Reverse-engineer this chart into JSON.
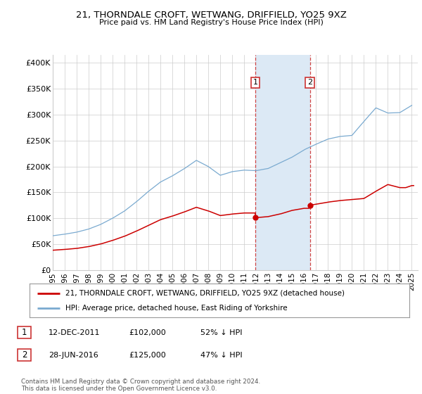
{
  "title1": "21, THORNDALE CROFT, WETWANG, DRIFFIELD, YO25 9XZ",
  "title2": "Price paid vs. HM Land Registry's House Price Index (HPI)",
  "ylabel_ticks": [
    "£0",
    "£50K",
    "£100K",
    "£150K",
    "£200K",
    "£250K",
    "£300K",
    "£350K",
    "£400K"
  ],
  "ytick_vals": [
    0,
    50000,
    100000,
    150000,
    200000,
    250000,
    300000,
    350000,
    400000
  ],
  "ylim": [
    0,
    415000
  ],
  "xlim_start": 1995.0,
  "xlim_end": 2025.5,
  "xticks": [
    1995,
    1996,
    1997,
    1998,
    1999,
    2000,
    2001,
    2002,
    2003,
    2004,
    2005,
    2006,
    2007,
    2008,
    2009,
    2010,
    2011,
    2012,
    2013,
    2014,
    2015,
    2016,
    2017,
    2018,
    2019,
    2020,
    2021,
    2022,
    2023,
    2024,
    2025
  ],
  "legend_line1_color": "#cc0000",
  "legend_line1_label": "21, THORNDALE CROFT, WETWANG, DRIFFIELD, YO25 9XZ (detached house)",
  "legend_line2_color": "#7aaad0",
  "legend_line2_label": "HPI: Average price, detached house, East Riding of Yorkshire",
  "transaction1_x": 2011.92,
  "transaction1_y": 102000,
  "transaction1_label": "1",
  "transaction1_date": "12-DEC-2011",
  "transaction1_price": "£102,000",
  "transaction1_info": "52% ↓ HPI",
  "transaction2_x": 2016.49,
  "transaction2_y": 125000,
  "transaction2_label": "2",
  "transaction2_date": "28-JUN-2016",
  "transaction2_price": "£125,000",
  "transaction2_info": "47% ↓ HPI",
  "footer": "Contains HM Land Registry data © Crown copyright and database right 2024.\nThis data is licensed under the Open Government Licence v3.0.",
  "bg_color": "#ffffff",
  "plot_bg_color": "#ffffff",
  "grid_color": "#cccccc",
  "shade_color": "#dce9f5"
}
